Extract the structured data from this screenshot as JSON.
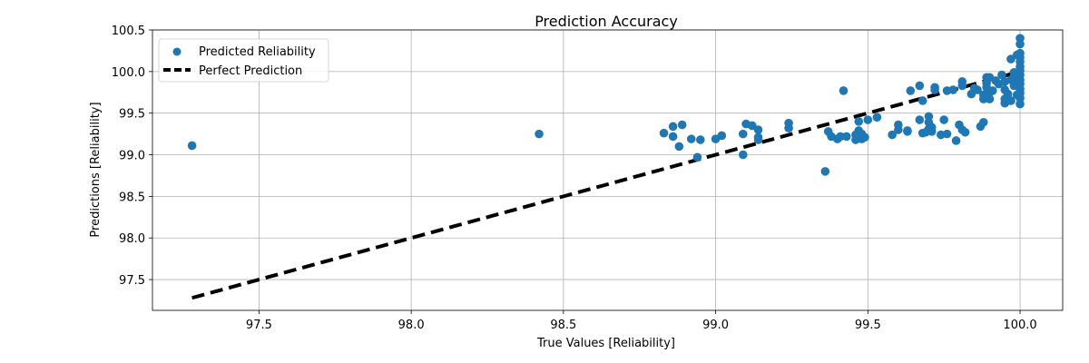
{
  "chart_data": {
    "type": "scatter",
    "title": "Prediction Accuracy",
    "xlabel": "True Values [Reliability]",
    "ylabel": "Predictions [Reliability]",
    "xlim": [
      97.15,
      100.14
    ],
    "ylim": [
      97.13,
      100.5
    ],
    "xticks": [
      "97.5",
      "98.0",
      "98.5",
      "99.0",
      "99.5",
      "100.0"
    ],
    "yticks": [
      "97.5",
      "98.0",
      "98.5",
      "99.0",
      "99.5",
      "100.0",
      "100.5"
    ],
    "grid": true,
    "legend_position": "top-left",
    "series": [
      {
        "name": "Predicted Reliability",
        "kind": "scatter",
        "color": "#1f77b4",
        "points": [
          [
            97.28,
            99.11
          ],
          [
            98.42,
            99.25
          ],
          [
            98.83,
            99.26
          ],
          [
            98.86,
            99.34
          ],
          [
            98.86,
            99.22
          ],
          [
            98.88,
            99.1
          ],
          [
            98.89,
            99.36
          ],
          [
            98.92,
            99.19
          ],
          [
            98.94,
            98.97
          ],
          [
            98.95,
            99.18
          ],
          [
            99.0,
            99.19
          ],
          [
            99.02,
            99.23
          ],
          [
            99.09,
            99.25
          ],
          [
            99.09,
            99.0
          ],
          [
            99.1,
            99.37
          ],
          [
            99.12,
            99.35
          ],
          [
            99.14,
            99.3
          ],
          [
            99.14,
            99.21
          ],
          [
            99.14,
            99.18
          ],
          [
            99.24,
            99.38
          ],
          [
            99.24,
            99.32
          ],
          [
            99.36,
            98.8
          ],
          [
            99.37,
            99.28
          ],
          [
            99.38,
            99.22
          ],
          [
            99.4,
            99.19
          ],
          [
            99.41,
            99.22
          ],
          [
            99.42,
            99.77
          ],
          [
            99.43,
            99.22
          ],
          [
            99.46,
            99.18
          ],
          [
            99.46,
            99.24
          ],
          [
            99.47,
            99.4
          ],
          [
            99.47,
            99.29
          ],
          [
            99.48,
            99.19
          ],
          [
            99.48,
            99.25
          ],
          [
            99.49,
            99.21
          ],
          [
            99.5,
            99.42
          ],
          [
            99.53,
            99.45
          ],
          [
            99.58,
            99.24
          ],
          [
            99.6,
            99.3
          ],
          [
            99.6,
            99.36
          ],
          [
            99.63,
            99.28
          ],
          [
            99.63,
            99.29
          ],
          [
            99.64,
            99.77
          ],
          [
            99.67,
            99.83
          ],
          [
            99.67,
            99.42
          ],
          [
            99.68,
            99.26
          ],
          [
            99.68,
            99.65
          ],
          [
            99.69,
            99.27
          ],
          [
            99.7,
            99.46
          ],
          [
            99.7,
            99.39
          ],
          [
            99.7,
            99.31
          ],
          [
            99.71,
            99.33
          ],
          [
            99.71,
            99.28
          ],
          [
            99.72,
            99.81
          ],
          [
            99.72,
            99.78
          ],
          [
            99.74,
            99.24
          ],
          [
            99.75,
            99.42
          ],
          [
            99.76,
            99.25
          ],
          [
            99.76,
            99.77
          ],
          [
            99.78,
            99.78
          ],
          [
            99.79,
            99.17
          ],
          [
            99.8,
            99.36
          ],
          [
            99.81,
            99.88
          ],
          [
            99.81,
            99.83
          ],
          [
            99.81,
            99.3
          ],
          [
            99.82,
            99.27
          ],
          [
            99.84,
            99.73
          ],
          [
            99.85,
            99.8
          ],
          [
            99.86,
            99.78
          ],
          [
            99.87,
            99.34
          ],
          [
            99.88,
            99.39
          ],
          [
            99.88,
            99.67
          ],
          [
            99.88,
            99.72
          ],
          [
            99.89,
            99.93
          ],
          [
            99.89,
            99.86
          ],
          [
            99.89,
            99.81
          ],
          [
            99.9,
            99.67
          ],
          [
            99.9,
            99.93
          ],
          [
            99.9,
            99.75
          ],
          [
            99.91,
            99.77
          ],
          [
            99.92,
            99.89
          ],
          [
            99.93,
            99.85
          ],
          [
            99.94,
            99.96
          ],
          [
            99.95,
            99.62
          ],
          [
            99.95,
            99.67
          ],
          [
            99.95,
            99.78
          ],
          [
            99.95,
            99.88
          ],
          [
            99.96,
            99.73
          ],
          [
            99.97,
            99.9
          ],
          [
            99.97,
            100.15
          ],
          [
            99.97,
            99.65
          ],
          [
            99.98,
            99.99
          ],
          [
            99.98,
            99.94
          ],
          [
            99.98,
            99.83
          ],
          [
            99.99,
            100.2
          ],
          [
            99.99,
            99.72
          ],
          [
            99.99,
            99.86
          ],
          [
            99.99,
            99.98
          ],
          [
            100.0,
            100.4
          ],
          [
            100.0,
            100.33
          ],
          [
            100.0,
            100.22
          ],
          [
            100.0,
            100.17
          ],
          [
            100.0,
            100.12
          ],
          [
            100.0,
            100.06
          ],
          [
            100.0,
            100.01
          ],
          [
            100.0,
            99.96
          ],
          [
            100.0,
            99.9
          ],
          [
            100.0,
            99.85
          ],
          [
            100.0,
            99.79
          ],
          [
            100.0,
            99.74
          ],
          [
            100.0,
            99.68
          ],
          [
            100.0,
            99.61
          ]
        ]
      },
      {
        "name": "Perfect Prediction",
        "kind": "line",
        "color": "#000000",
        "dash": true,
        "points": [
          [
            97.28,
            97.28
          ],
          [
            100.0,
            100.0
          ]
        ]
      }
    ]
  }
}
